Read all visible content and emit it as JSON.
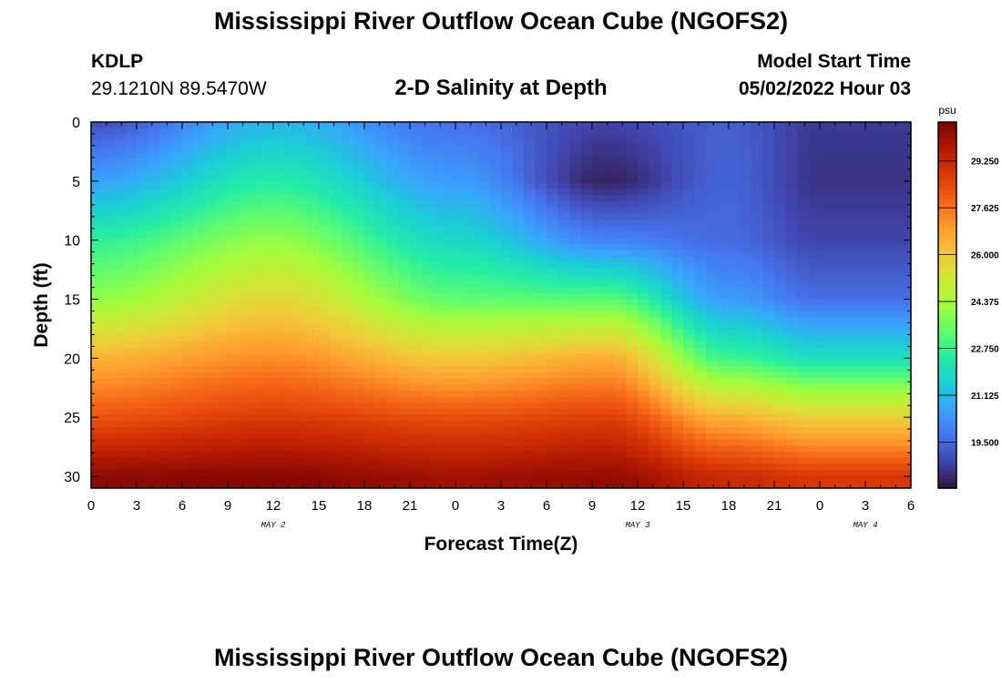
{
  "header": {
    "title": "Mississippi River Outflow Ocean Cube (NGOFS2)",
    "station": "KDLP",
    "coordinates": "29.1210N  89.5470W",
    "subtitle": "2-D Salinity at Depth",
    "model_start_label": "Model Start Time",
    "model_start_value": "05/02/2022 Hour 03"
  },
  "footer": {
    "title": "Mississippi River Outflow Ocean Cube (NGOFS2)"
  },
  "chart_data": {
    "type": "heatmap",
    "title": "2-D Salinity at Depth",
    "xlabel": "Forecast Time(Z)",
    "ylabel": "Depth (ft)",
    "x_range_hours": [
      0,
      54
    ],
    "x_ticks": [
      "0",
      "3",
      "6",
      "9",
      "12",
      "15",
      "18",
      "21",
      "0",
      "3",
      "6",
      "9",
      "12",
      "15",
      "18",
      "21",
      "0",
      "3",
      "6"
    ],
    "date_labels": [
      {
        "label": "MAY 2",
        "hour": 12
      },
      {
        "label": "MAY 3",
        "hour": 36
      },
      {
        "label": "MAY 4",
        "hour": 51
      }
    ],
    "ylim": [
      31,
      0
    ],
    "y_ticks": [
      0,
      5,
      10,
      15,
      20,
      25,
      30
    ],
    "colorbar": {
      "unit": "psu",
      "range": [
        17.9,
        30.6
      ],
      "ticks": [
        "19.500",
        "21.125",
        "22.750",
        "24.375",
        "26.000",
        "27.625",
        "29.250"
      ],
      "colors": [
        "#30123b",
        "#4145ab",
        "#4675ed",
        "#39a2fc",
        "#1bcfd4",
        "#24eca6",
        "#61fc6c",
        "#a4fc3b",
        "#d1e834",
        "#f3c63a",
        "#fe9b2d",
        "#f36315",
        "#d93806",
        "#b11901",
        "#7a0403"
      ]
    },
    "series": [
      {
        "hour": 0,
        "values_by_depth": [
          {
            "depth": 0,
            "salinity": 19.0
          },
          {
            "depth": 5,
            "salinity": 20.6
          },
          {
            "depth": 10,
            "salinity": 22.6
          },
          {
            "depth": 15,
            "salinity": 24.0
          },
          {
            "depth": 20,
            "salinity": 26.5
          },
          {
            "depth": 25,
            "salinity": 28.2
          },
          {
            "depth": 30,
            "salinity": 30.3
          }
        ]
      },
      {
        "hour": 12,
        "values_by_depth": [
          {
            "depth": 0,
            "salinity": 21.0
          },
          {
            "depth": 5,
            "salinity": 22.4
          },
          {
            "depth": 10,
            "salinity": 24.0
          },
          {
            "depth": 15,
            "salinity": 25.6
          },
          {
            "depth": 20,
            "salinity": 27.2
          },
          {
            "depth": 25,
            "salinity": 28.7
          },
          {
            "depth": 30,
            "salinity": 30.4
          }
        ]
      },
      {
        "hour": 24,
        "values_by_depth": [
          {
            "depth": 0,
            "salinity": 19.6
          },
          {
            "depth": 5,
            "salinity": 20.5
          },
          {
            "depth": 10,
            "salinity": 21.8
          },
          {
            "depth": 15,
            "salinity": 23.3
          },
          {
            "depth": 20,
            "salinity": 26.0
          },
          {
            "depth": 25,
            "salinity": 28.3
          },
          {
            "depth": 30,
            "salinity": 30.0
          }
        ]
      },
      {
        "hour": 34,
        "values_by_depth": [
          {
            "depth": 0,
            "salinity": 18.8
          },
          {
            "depth": 5,
            "salinity": 18.2
          },
          {
            "depth": 10,
            "salinity": 20.0
          },
          {
            "depth": 15,
            "salinity": 23.2
          },
          {
            "depth": 20,
            "salinity": 26.6
          },
          {
            "depth": 25,
            "salinity": 28.6
          },
          {
            "depth": 30,
            "salinity": 30.2
          }
        ]
      },
      {
        "hour": 42,
        "values_by_depth": [
          {
            "depth": 0,
            "salinity": 19.3
          },
          {
            "depth": 5,
            "salinity": 19.4
          },
          {
            "depth": 10,
            "salinity": 19.5
          },
          {
            "depth": 15,
            "salinity": 20.5
          },
          {
            "depth": 20,
            "salinity": 22.8
          },
          {
            "depth": 25,
            "salinity": 26.5
          },
          {
            "depth": 30,
            "salinity": 29.2
          }
        ]
      },
      {
        "hour": 48,
        "values_by_depth": [
          {
            "depth": 0,
            "salinity": 18.6
          },
          {
            "depth": 5,
            "salinity": 18.5
          },
          {
            "depth": 10,
            "salinity": 18.8
          },
          {
            "depth": 15,
            "salinity": 19.6
          },
          {
            "depth": 20,
            "salinity": 22.0
          },
          {
            "depth": 25,
            "salinity": 25.8
          },
          {
            "depth": 30,
            "salinity": 28.8
          }
        ]
      }
    ]
  }
}
